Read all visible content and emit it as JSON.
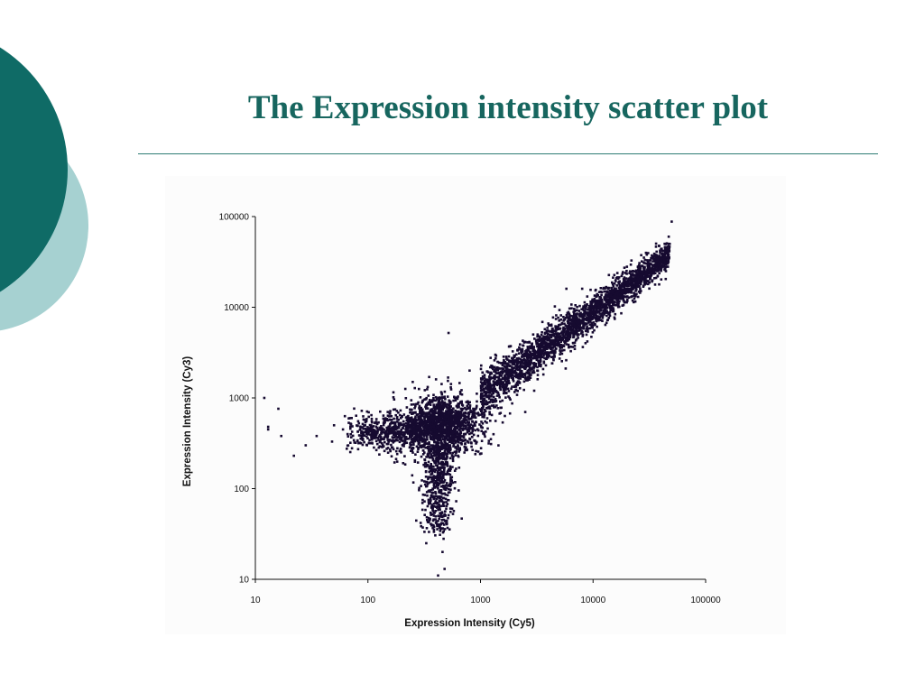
{
  "slide": {
    "title": "The Expression intensity scatter plot",
    "accent_color": "#17665F",
    "circle_dark_color": "#0F6B66",
    "circle_light_color": "#A6D1D1"
  },
  "chart_data": {
    "type": "scatter",
    "xlabel": "Expression Intensity (Cy5)",
    "ylabel": "Expression Intensity (Cy3)",
    "x_scale": "log",
    "y_scale": "log",
    "xlim": [
      10,
      100000
    ],
    "ylim": [
      10,
      100000
    ],
    "x_ticks": [
      "10",
      "100",
      "1000",
      "10000",
      "100000"
    ],
    "y_ticks": [
      "10",
      "100",
      "1000",
      "10000",
      "100000"
    ],
    "grid": false,
    "legend": "none",
    "marker_color": "#160A30",
    "points": [
      [
        12,
        1000
      ],
      [
        13,
        480
      ],
      [
        16,
        760
      ],
      [
        13,
        450
      ],
      [
        17,
        380
      ],
      [
        22,
        230
      ],
      [
        28,
        300
      ],
      [
        35,
        380
      ],
      [
        50,
        500
      ],
      [
        60,
        450
      ],
      [
        70,
        520
      ],
      [
        48,
        330
      ],
      [
        90,
        420
      ],
      [
        420,
        11
      ],
      [
        480,
        13
      ],
      [
        460,
        20
      ],
      [
        330,
        25
      ],
      [
        470,
        28
      ],
      [
        560,
        60
      ],
      [
        380,
        90
      ],
      [
        900,
        240
      ],
      [
        520,
        5200
      ],
      [
        800,
        2000
      ],
      [
        5800,
        16000
      ],
      [
        8000,
        16000
      ],
      [
        50000,
        88000
      ],
      [
        47000,
        60000
      ],
      [
        30000,
        38000
      ],
      [
        1100,
        550
      ],
      [
        2500,
        700
      ],
      [
        200,
        620
      ],
      [
        150,
        700
      ],
      [
        250,
        1500
      ],
      [
        350,
        1700
      ],
      [
        3000,
        3000
      ],
      [
        3000,
        1200
      ],
      [
        6000,
        5000
      ],
      [
        15000,
        9000
      ],
      [
        20000,
        28000
      ],
      [
        42000,
        42000
      ]
    ],
    "bulk_clouds": [
      {
        "shape": "ridge",
        "x_from": 1000,
        "x_to": 48000,
        "log_slope": 0.92,
        "log_spread": 0.12,
        "points": 2600
      },
      {
        "shape": "blob",
        "x_center": 450,
        "y_center": 500,
        "log_spread_x": 0.17,
        "log_spread_y": 0.16,
        "points": 1500
      },
      {
        "shape": "arm-left",
        "x_from": 60,
        "x_to": 300,
        "y_center": 420,
        "log_spread_y": 0.1,
        "points": 550
      },
      {
        "shape": "spike-down",
        "x_center": 420,
        "y_from": 30,
        "y_to": 300,
        "log_spread_x": 0.07,
        "points": 550
      }
    ]
  }
}
